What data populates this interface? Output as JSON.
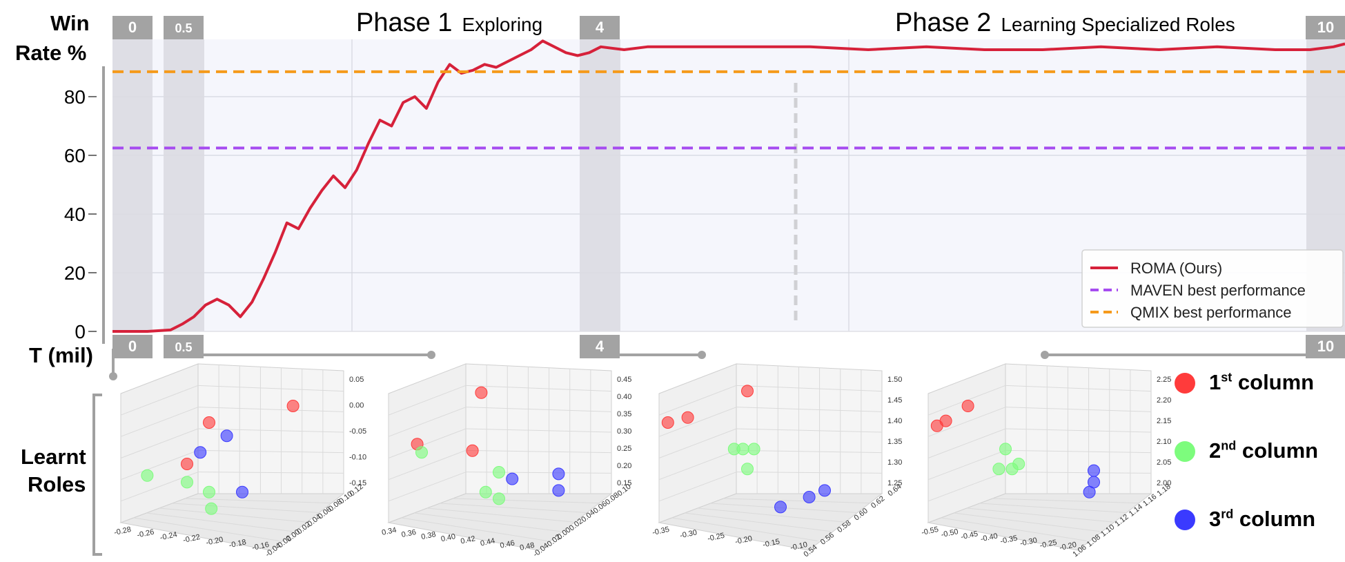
{
  "labels": {
    "win_rate_1": "Win",
    "win_rate_2": "Rate %",
    "t_mil": "T (mil)",
    "roles_1": "Learnt",
    "roles_2": "Roles"
  },
  "phases": [
    {
      "title": "Phase 1",
      "subtitle": "Exploring"
    },
    {
      "title": "Phase 2",
      "subtitle": "Learning Specialized Roles"
    }
  ],
  "snapshots": [
    "0",
    "0.5",
    "4",
    "10"
  ],
  "role_legend": [
    {
      "ord": "1",
      "sup": "st",
      "text": "column",
      "color": "#ff3b3b"
    },
    {
      "ord": "2",
      "sup": "nd",
      "text": "column",
      "color": "#7dfc7d"
    },
    {
      "ord": "3",
      "sup": "rd",
      "text": "column",
      "color": "#3a3aff"
    }
  ],
  "chart_data": [
    {
      "type": "line",
      "x_unit": "T (mil)",
      "xlim": [
        0,
        10.6
      ],
      "ylim": [
        0,
        100
      ],
      "yticks": [
        0,
        20,
        40,
        60,
        80
      ],
      "grid": true,
      "legend_position": "bottom-right",
      "series": [
        {
          "name": "ROMA (Ours)",
          "color": "#d6213a",
          "x": [
            0,
            0.3,
            0.5,
            0.6,
            0.7,
            0.8,
            0.9,
            1.0,
            1.1,
            1.2,
            1.3,
            1.4,
            1.5,
            1.6,
            1.7,
            1.8,
            1.9,
            2.0,
            2.1,
            2.2,
            2.3,
            2.4,
            2.5,
            2.6,
            2.7,
            2.8,
            2.9,
            3.0,
            3.1,
            3.2,
            3.3,
            3.4,
            3.5,
            3.6,
            3.7,
            3.8,
            3.9,
            4.0,
            4.1,
            4.2,
            4.4,
            4.6,
            4.8,
            5.0,
            5.5,
            6.0,
            6.5,
            7.0,
            7.5,
            8.0,
            8.5,
            9.0,
            9.5,
            10.0,
            10.3,
            10.5,
            10.6
          ],
          "y": [
            0,
            0,
            0.5,
            2.5,
            5,
            9,
            11,
            9,
            5,
            10,
            18,
            27,
            37,
            35,
            42,
            48,
            53,
            49,
            55,
            64,
            72,
            70,
            78,
            80,
            76,
            85,
            91,
            88,
            89,
            91,
            90,
            92,
            94,
            96,
            99,
            97,
            95,
            94,
            95,
            97,
            96,
            97,
            97,
            97,
            97,
            97,
            96,
            97,
            96,
            96,
            97,
            96,
            97,
            96,
            96,
            97,
            98
          ]
        },
        {
          "name": "MAVEN best performance",
          "color": "#a64cf0",
          "dashed": true,
          "x": [
            0,
            10.6
          ],
          "y": [
            62.5,
            62.5
          ]
        },
        {
          "name": "QMIX best performance",
          "color": "#f59a1b",
          "dashed": true,
          "x": [
            0,
            10.6
          ],
          "y": [
            88.5,
            88.5
          ]
        }
      ]
    },
    {
      "type": "scatter",
      "snapshot": "0",
      "z_ticks": [
        "0.05",
        "0.00",
        "-0.05",
        "-0.10",
        "-0.15"
      ],
      "x_ticks": [
        "-0.28",
        "-0.26",
        "-0.24",
        "-0.22",
        "-0.20",
        "-0.18",
        "-0.16"
      ],
      "y_ticks": [
        "-0.04",
        "-0.02",
        "0.00",
        "0.02",
        "0.04",
        "0.06",
        "0.08",
        "0.10",
        "0.12"
      ],
      "points": [
        {
          "group": 1,
          "u": 0.78,
          "v": 0.2
        },
        {
          "group": 1,
          "u": 0.4,
          "v": 0.3
        },
        {
          "group": 1,
          "u": 0.3,
          "v": 0.55
        },
        {
          "group": 3,
          "u": 0.48,
          "v": 0.38
        },
        {
          "group": 3,
          "u": 0.36,
          "v": 0.48
        },
        {
          "group": 3,
          "u": 0.55,
          "v": 0.72
        },
        {
          "group": 2,
          "u": 0.12,
          "v": 0.62
        },
        {
          "group": 2,
          "u": 0.3,
          "v": 0.66
        },
        {
          "group": 2,
          "u": 0.4,
          "v": 0.72
        },
        {
          "group": 2,
          "u": 0.41,
          "v": 0.82
        }
      ]
    },
    {
      "type": "scatter",
      "snapshot": "0.5",
      "z_ticks": [
        "0.45",
        "0.40",
        "0.35",
        "0.30",
        "0.25",
        "0.20",
        "0.15"
      ],
      "x_ticks": [
        "0.34",
        "0.36",
        "0.38",
        "0.40",
        "0.42",
        "0.44",
        "0.46",
        "0.48"
      ],
      "y_ticks": [
        "-0.04",
        "-0.02",
        "0.00",
        "0.02",
        "0.04",
        "0.06",
        "0.08",
        "0.10"
      ],
      "points": [
        {
          "group": 1,
          "u": 0.42,
          "v": 0.12
        },
        {
          "group": 1,
          "u": 0.13,
          "v": 0.43
        },
        {
          "group": 1,
          "u": 0.38,
          "v": 0.47
        },
        {
          "group": 2,
          "u": 0.15,
          "v": 0.48
        },
        {
          "group": 2,
          "u": 0.5,
          "v": 0.6
        },
        {
          "group": 2,
          "u": 0.44,
          "v": 0.72
        },
        {
          "group": 2,
          "u": 0.5,
          "v": 0.76
        },
        {
          "group": 3,
          "u": 0.56,
          "v": 0.64
        },
        {
          "group": 3,
          "u": 0.77,
          "v": 0.61
        },
        {
          "group": 3,
          "u": 0.77,
          "v": 0.71
        }
      ]
    },
    {
      "type": "scatter",
      "snapshot": "4",
      "z_ticks": [
        "1.50",
        "1.45",
        "1.40",
        "1.35",
        "1.30",
        "1.25"
      ],
      "x_ticks": [
        "-0.35",
        "-0.30",
        "-0.25",
        "-0.20",
        "-0.15",
        "-0.10"
      ],
      "y_ticks": [
        "0.54",
        "0.56",
        "0.58",
        "0.60",
        "0.62",
        "0.64"
      ],
      "points": [
        {
          "group": 1,
          "u": 0.4,
          "v": 0.11
        },
        {
          "group": 1,
          "u": 0.04,
          "v": 0.3
        },
        {
          "group": 1,
          "u": 0.13,
          "v": 0.27
        },
        {
          "group": 2,
          "u": 0.34,
          "v": 0.46
        },
        {
          "group": 2,
          "u": 0.38,
          "v": 0.46
        },
        {
          "group": 2,
          "u": 0.43,
          "v": 0.46
        },
        {
          "group": 2,
          "u": 0.4,
          "v": 0.58
        },
        {
          "group": 3,
          "u": 0.55,
          "v": 0.81
        },
        {
          "group": 3,
          "u": 0.68,
          "v": 0.75
        },
        {
          "group": 3,
          "u": 0.75,
          "v": 0.71
        }
      ]
    },
    {
      "type": "scatter",
      "snapshot": "10",
      "z_ticks": [
        "2.25",
        "2.20",
        "2.15",
        "2.10",
        "2.05",
        "2.00"
      ],
      "x_ticks": [
        "-0.55",
        "-0.50",
        "-0.45",
        "-0.40",
        "-0.35",
        "-0.30",
        "-0.25",
        "-0.20"
      ],
      "y_ticks": [
        "1.06",
        "1.08",
        "1.10",
        "1.12",
        "1.14",
        "1.16",
        "1.18"
      ],
      "points": [
        {
          "group": 1,
          "u": 0.18,
          "v": 0.2
        },
        {
          "group": 1,
          "u": 0.04,
          "v": 0.32
        },
        {
          "group": 1,
          "u": 0.08,
          "v": 0.29
        },
        {
          "group": 2,
          "u": 0.35,
          "v": 0.46
        },
        {
          "group": 2,
          "u": 0.32,
          "v": 0.58
        },
        {
          "group": 2,
          "u": 0.38,
          "v": 0.58
        },
        {
          "group": 2,
          "u": 0.41,
          "v": 0.55
        },
        {
          "group": 3,
          "u": 0.75,
          "v": 0.59
        },
        {
          "group": 3,
          "u": 0.75,
          "v": 0.66
        },
        {
          "group": 3,
          "u": 0.73,
          "v": 0.72
        }
      ]
    }
  ]
}
